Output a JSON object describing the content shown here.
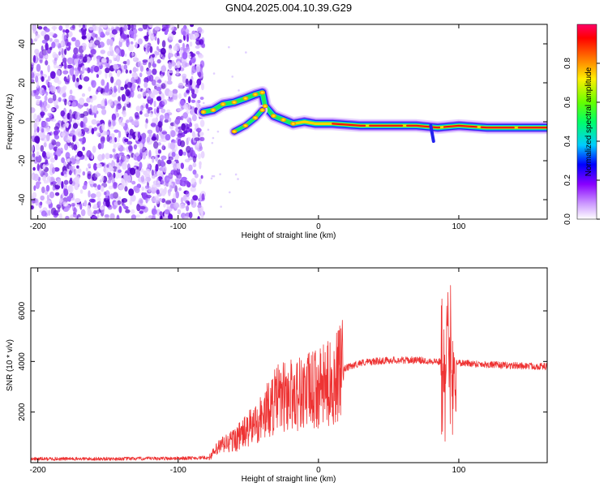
{
  "title": "GN04.2025.004.10.39.G29",
  "chart_data": [
    {
      "type": "heatmap",
      "xlabel": "Height of straight line (km)",
      "ylabel": "Frequency (Hz)",
      "xlim": [
        -205,
        163
      ],
      "ylim": [
        -50,
        50
      ],
      "xticks": [
        -200,
        -100,
        0,
        100
      ],
      "yticks": [
        -40,
        -20,
        0,
        20,
        40
      ],
      "colorbar": {
        "label": "Normalized spectral amplitude",
        "range": [
          0,
          1
        ],
        "ticks": [
          "0.0",
          "0.2",
          "0.4",
          "0.6",
          "0.8"
        ]
      },
      "noise_region_x": [
        -205,
        -82
      ],
      "ridge": [
        {
          "x": -82,
          "y": 5
        },
        {
          "x": -75,
          "y": 6
        },
        {
          "x": -68,
          "y": 9
        },
        {
          "x": -60,
          "y": 10
        },
        {
          "x": -52,
          "y": 12
        },
        {
          "x": -45,
          "y": 14
        },
        {
          "x": -40,
          "y": 15
        },
        {
          "x": -38,
          "y": 8
        },
        {
          "x": -32,
          "y": 3
        },
        {
          "x": -25,
          "y": 1
        },
        {
          "x": -18,
          "y": -1
        },
        {
          "x": -10,
          "y": 0
        },
        {
          "x": -2,
          "y": -1
        },
        {
          "x": 10,
          "y": -1
        },
        {
          "x": 30,
          "y": -2
        },
        {
          "x": 55,
          "y": -2
        },
        {
          "x": 70,
          "y": -2
        },
        {
          "x": 85,
          "y": -3
        },
        {
          "x": 100,
          "y": -2
        },
        {
          "x": 120,
          "y": -3
        },
        {
          "x": 163,
          "y": -3
        }
      ],
      "branch": [
        {
          "x": -60,
          "y": -5
        },
        {
          "x": -52,
          "y": -2
        },
        {
          "x": -45,
          "y": 2
        },
        {
          "x": -40,
          "y": 6
        }
      ]
    },
    {
      "type": "line",
      "xlabel": "Height of straight line (km)",
      "ylabel": "SNR (10 * v/v)",
      "xlim": [
        -205,
        163
      ],
      "ylim": [
        0,
        7700
      ],
      "xticks": [
        -200,
        -100,
        0,
        100
      ],
      "yticks": [
        2000,
        4000,
        6000
      ],
      "color": "#ee3333",
      "profile": [
        {
          "x": -205,
          "y": 150
        },
        {
          "x": -150,
          "y": 150
        },
        {
          "x": -100,
          "y": 170
        },
        {
          "x": -78,
          "y": 200
        },
        {
          "x": -70,
          "y": 650
        },
        {
          "x": -60,
          "y": 900
        },
        {
          "x": -50,
          "y": 1300
        },
        {
          "x": -40,
          "y": 1800
        },
        {
          "x": -30,
          "y": 2500
        },
        {
          "x": -20,
          "y": 2700
        },
        {
          "x": -10,
          "y": 2800
        },
        {
          "x": 0,
          "y": 2900
        },
        {
          "x": 10,
          "y": 3200
        },
        {
          "x": 18,
          "y": 3700
        },
        {
          "x": 30,
          "y": 3950
        },
        {
          "x": 50,
          "y": 4050
        },
        {
          "x": 70,
          "y": 4050
        },
        {
          "x": 85,
          "y": 4000
        },
        {
          "x": 90,
          "y": 3950
        },
        {
          "x": 100,
          "y": 3950
        },
        {
          "x": 130,
          "y": 3850
        },
        {
          "x": 163,
          "y": 3800
        }
      ]
    }
  ]
}
